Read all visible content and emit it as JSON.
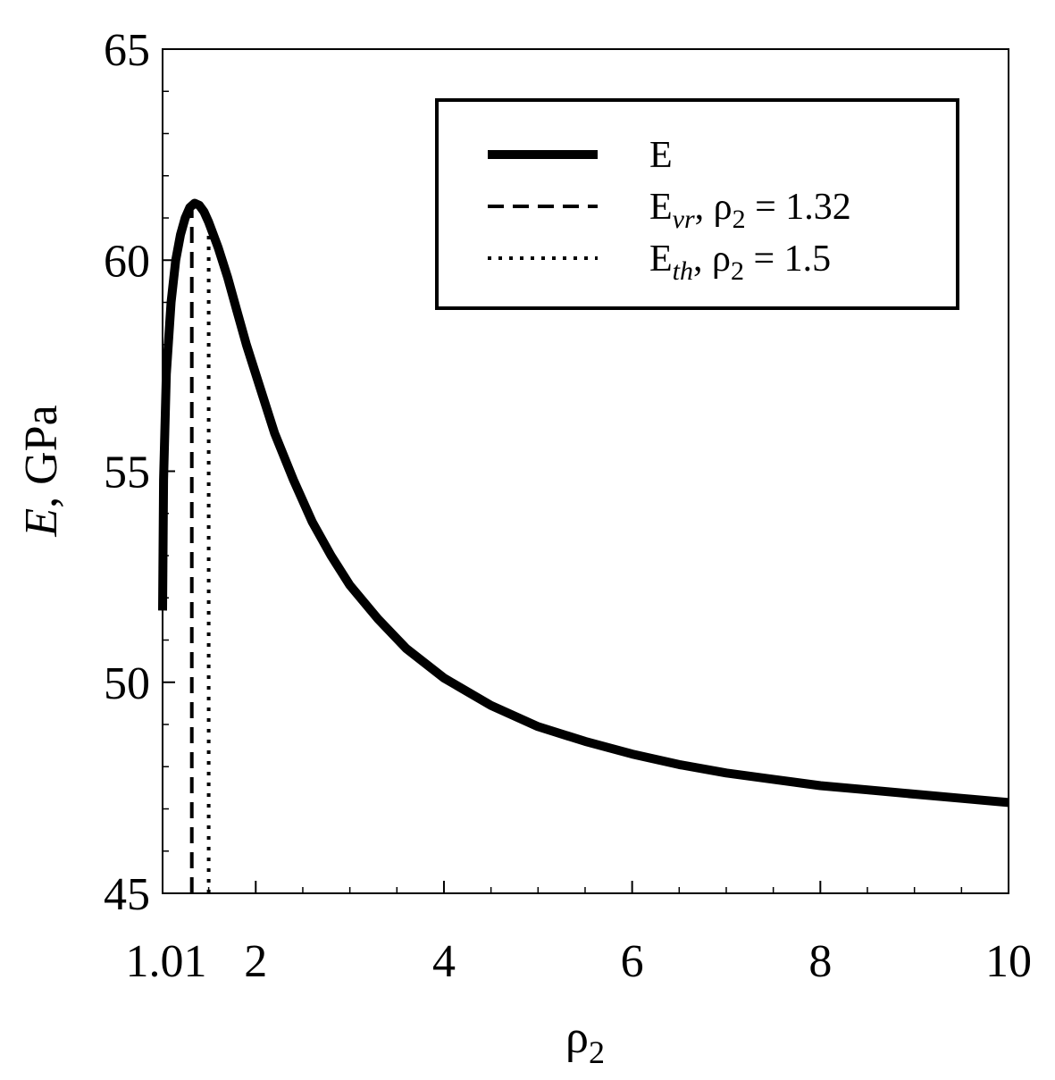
{
  "chart_data": {
    "type": "line",
    "xlabel": {
      "symbol": "ρ",
      "sub": "2"
    },
    "ylabel": {
      "var": "E",
      "rest": ", GPa"
    },
    "xlim": [
      1.01,
      10
    ],
    "ylim": [
      45,
      65
    ],
    "x_ticks": [
      1.01,
      2,
      4,
      6,
      8,
      10
    ],
    "x_tick_labels": [
      "1.01",
      "2",
      "4",
      "6",
      "8",
      "10"
    ],
    "x_minor_step": 0.5,
    "y_ticks": [
      45,
      50,
      55,
      60,
      65
    ],
    "y_tick_labels": [
      "45",
      "50",
      "55",
      "60",
      "65"
    ],
    "y_minor_step": 1,
    "grid": false,
    "legend_position": "top-right",
    "series": [
      {
        "name": "E",
        "style": "solid",
        "x": [
          1.01,
          1.02,
          1.05,
          1.1,
          1.15,
          1.2,
          1.25,
          1.3,
          1.35,
          1.4,
          1.45,
          1.5,
          1.6,
          1.7,
          1.8,
          1.9,
          2.0,
          2.2,
          2.4,
          2.6,
          2.8,
          3.0,
          3.3,
          3.6,
          4.0,
          4.5,
          5.0,
          5.5,
          6.0,
          6.5,
          7.0,
          7.5,
          8.0,
          8.5,
          9.0,
          9.5,
          10.0
        ],
        "y": [
          51.7,
          54.8,
          57.3,
          59.0,
          60.0,
          60.6,
          61.0,
          61.25,
          61.35,
          61.3,
          61.15,
          60.9,
          60.3,
          59.6,
          58.8,
          58.0,
          57.3,
          55.9,
          54.8,
          53.8,
          53.0,
          52.3,
          51.5,
          50.8,
          50.1,
          49.45,
          48.95,
          48.6,
          48.3,
          48.05,
          47.85,
          47.7,
          47.55,
          47.45,
          47.35,
          47.25,
          47.15
        ]
      },
      {
        "name": {
          "main": "E",
          "sub": "vr",
          "eq": ",  ρ",
          "eq_sub": "2",
          "val": " = 1.32"
        },
        "style": "dashed",
        "x": [
          1.32,
          1.32
        ],
        "y": [
          45,
          61.2
        ]
      },
      {
        "name": {
          "main": "E",
          "sub": "th",
          "eq": ",  ρ",
          "eq_sub": "2",
          "val": " = 1.5"
        },
        "style": "dotted",
        "x": [
          1.5,
          1.5
        ],
        "y": [
          45,
          60.9
        ]
      }
    ]
  }
}
